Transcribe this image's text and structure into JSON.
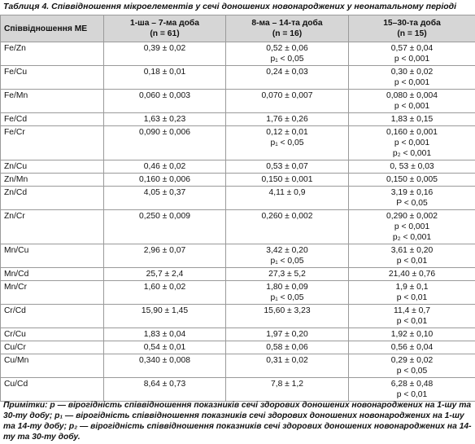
{
  "table": {
    "title": "Таблиця 4. Співвідношення мікроелементів у сечі доношених новонароджених у неонатальному періоді",
    "columns": [
      [
        "Співвідношення МЕ"
      ],
      [
        "1-ша – 7-ма доба",
        "(n = 61)"
      ],
      [
        "8-ма – 14-та доба",
        "(n = 16)"
      ],
      [
        "15–30-та доба",
        "(n = 15)"
      ]
    ],
    "rows": [
      [
        [
          "Fe/Zn"
        ],
        [
          "0,39 ± 0,02"
        ],
        [
          "0,52 ± 0,06",
          "p₁ < 0,05"
        ],
        [
          "0,57 ± 0,04",
          "p < 0,001"
        ]
      ],
      [
        [
          "Fe/Cu"
        ],
        [
          "0,18 ± 0,01"
        ],
        [
          "0,24 ± 0,03"
        ],
        [
          "0,30 ± 0,02",
          "p < 0,001"
        ]
      ],
      [
        [
          "Fe/Mn"
        ],
        [
          "0,060 ± 0,003"
        ],
        [
          "0,070 ± 0,007"
        ],
        [
          "0,080 ± 0,004",
          "p < 0,001"
        ]
      ],
      [
        [
          "Fe/Cd"
        ],
        [
          "1,63 ± 0,23"
        ],
        [
          "1,76 ± 0,26"
        ],
        [
          "1,83 ± 0,15"
        ]
      ],
      [
        [
          "Fe/Cr"
        ],
        [
          "0,090 ± 0,006"
        ],
        [
          "0,12 ± 0,01",
          "p₁ < 0,05"
        ],
        [
          "0,160 ± 0,001",
          "p < 0,001",
          "p₂ < 0,001"
        ]
      ],
      [
        [
          "Zn/Cu"
        ],
        [
          "0,46 ± 0,02"
        ],
        [
          "0,53 ± 0,07"
        ],
        [
          "0, 53 ± 0,03"
        ]
      ],
      [
        [
          "Zn/Mn"
        ],
        [
          "0,160 ± 0,006"
        ],
        [
          "0,150 ± 0,001"
        ],
        [
          "0,150 ± 0,005"
        ]
      ],
      [
        [
          "Zn/Cd"
        ],
        [
          "4,05 ± 0,37"
        ],
        [
          "4,11 ± 0,9"
        ],
        [
          "3,19 ± 0,16",
          "P < 0,05"
        ]
      ],
      [
        [
          "Zn/Cr"
        ],
        [
          "0,250 ± 0,009"
        ],
        [
          "0,260 ± 0,002"
        ],
        [
          "0,290 ± 0,002",
          "p < 0,001",
          "p₂ < 0,001"
        ]
      ],
      [
        [
          "Mn/Cu"
        ],
        [
          "2,96 ± 0,07"
        ],
        [
          "3,42 ± 0,20",
          "p₁ < 0,05"
        ],
        [
          "3,61 ± 0,20",
          "p < 0,01"
        ]
      ],
      [
        [
          "Mn/Cd"
        ],
        [
          "25,7 ± 2,4"
        ],
        [
          "27,3 ± 5,2"
        ],
        [
          "21,40 ± 0,76"
        ]
      ],
      [
        [
          "Mn/Cr"
        ],
        [
          "1,60 ± 0,02"
        ],
        [
          "1,80 ± 0,09",
          "p₁ < 0,05"
        ],
        [
          "1,9 ± 0,1",
          "p < 0,01"
        ]
      ],
      [
        [
          "Cr/Cd"
        ],
        [
          "15,90 ± 1,45"
        ],
        [
          "15,60 ± 3,23"
        ],
        [
          "11,4 ± 0,7",
          "p < 0,01"
        ]
      ],
      [
        [
          "Cr/Cu"
        ],
        [
          "1,83 ± 0,04"
        ],
        [
          "1,97 ± 0,20"
        ],
        [
          "1,92 ± 0,10"
        ]
      ],
      [
        [
          "Cu/Cr"
        ],
        [
          "0,54 ± 0,01"
        ],
        [
          "0,58 ± 0,06"
        ],
        [
          "0,56 ± 0,04"
        ]
      ],
      [
        [
          "Cu/Mn"
        ],
        [
          "0,340 ± 0,008"
        ],
        [
          "0,31 ± 0,02"
        ],
        [
          "0,29 ± 0,02",
          "p < 0,05"
        ]
      ],
      [
        [
          "Cu/Cd"
        ],
        [
          "8,64 ± 0,73"
        ],
        [
          "7,8 ± 1,2"
        ],
        [
          "6,28 ± 0,48",
          "p < 0,01"
        ]
      ]
    ],
    "note": "Примітки: p — вірогідність співвідношення показників сечі здорових доношених новонароджених на 1-шу та 30-ту добу; p₁ — вірогідність співвідношення показників сечі здорових доношених новонароджених на 1-шу та 14-ту добу; p₂ — вірогідність співвідношення показників сечі здорових доношених новонароджених на 14-ту та 30-ту добу."
  }
}
